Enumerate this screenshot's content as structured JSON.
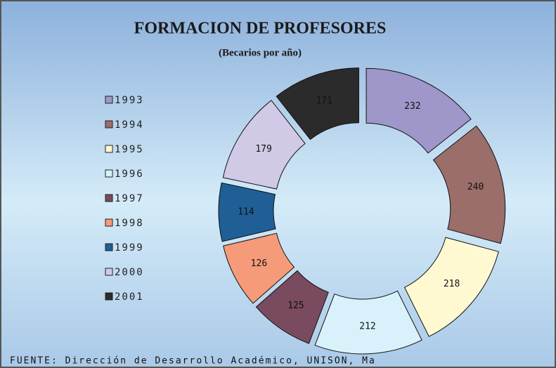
{
  "chart_data": {
    "type": "donut",
    "title": "FORMACION DE PROFESORES",
    "subtitle": "(Becarios por año)",
    "categories": [
      "1993",
      "1994",
      "1995",
      "1996",
      "1997",
      "1998",
      "1999",
      "2000",
      "2001"
    ],
    "values": [
      232,
      240,
      218,
      212,
      125,
      126,
      114,
      179,
      171
    ],
    "colors": [
      "#9f97c9",
      "#9b6e6a",
      "#fff9d2",
      "#d8f1fb",
      "#7a4a5e",
      "#f59b7a",
      "#1f5f96",
      "#d0cae6",
      "#2b2b2b"
    ],
    "footnote": "FUENTE: Dirección de Desarrollo Académico, UNISON, Ma",
    "legend": "left"
  }
}
